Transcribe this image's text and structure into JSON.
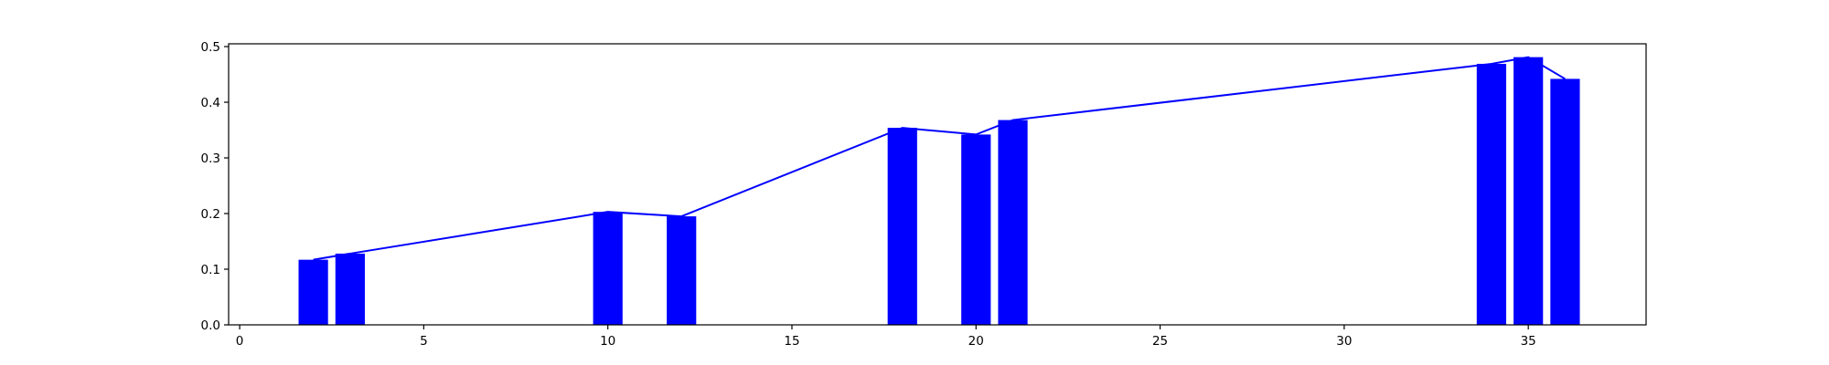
{
  "chart_data": {
    "type": "bar",
    "title": "",
    "xlabel": "",
    "ylabel": "",
    "xlim": [
      -0.3,
      38.2
    ],
    "ylim": [
      0.0,
      0.505
    ],
    "xticks": [
      0,
      5,
      10,
      15,
      20,
      25,
      30,
      35
    ],
    "xtick_labels": [
      "0",
      "5",
      "10",
      "15",
      "20",
      "25",
      "30",
      "35"
    ],
    "yticks": [
      0.0,
      0.1,
      0.2,
      0.3,
      0.4,
      0.5
    ],
    "ytick_labels": [
      "0.0",
      "0.1",
      "0.2",
      "0.3",
      "0.4",
      "0.5"
    ],
    "grid": false,
    "bar_width": 0.8,
    "series": [
      {
        "kind": "bar",
        "color": "#0000ff",
        "x": [
          2,
          3,
          10,
          12,
          18,
          20,
          21,
          34,
          35,
          36
        ],
        "values": [
          0.117,
          0.128,
          0.203,
          0.195,
          0.354,
          0.342,
          0.368,
          0.469,
          0.481,
          0.442
        ]
      },
      {
        "kind": "line",
        "color": "#0000ff",
        "x": [
          2,
          3,
          10,
          12,
          18,
          20,
          21,
          34,
          35,
          36
        ],
        "values": [
          0.117,
          0.128,
          0.203,
          0.195,
          0.354,
          0.342,
          0.368,
          0.469,
          0.481,
          0.442
        ]
      }
    ]
  }
}
